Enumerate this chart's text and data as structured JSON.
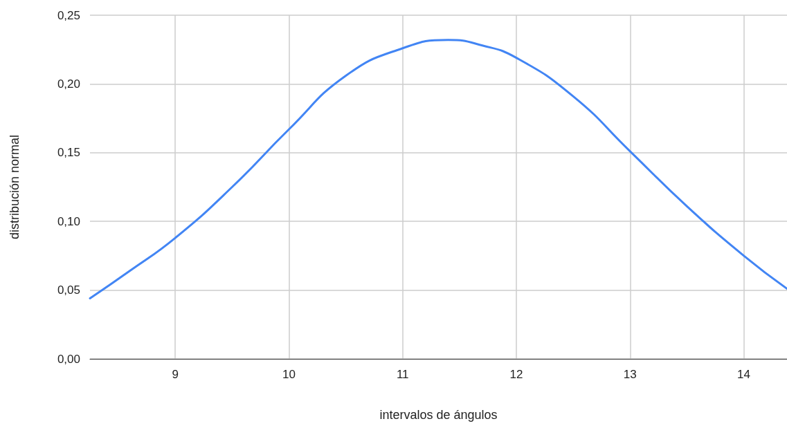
{
  "chart_data": {
    "type": "line",
    "xlabel": "intervalos de ángulos",
    "ylabel": "distribución normal",
    "x": [
      8.25,
      8.6,
      9,
      9.5,
      10,
      10.5,
      11,
      11.4,
      11.7,
      12,
      12.5,
      13,
      13.5,
      14,
      14.38
    ],
    "series": [
      {
        "color": "#4285f4",
        "values": [
          0.044,
          0.064,
          0.088,
          0.125,
          0.167,
          0.206,
          0.226,
          0.232,
          0.228,
          0.219,
          0.191,
          0.151,
          0.111,
          0.075,
          0.051
        ]
      }
    ],
    "xlim": [
      8.25,
      14.38
    ],
    "xticks": [
      9,
      10,
      11,
      12,
      13,
      14
    ],
    "ylim": [
      0,
      0.25
    ],
    "yticks": [
      {
        "value": 0,
        "label": "0,00"
      },
      {
        "value": 0.05,
        "label": "0,05"
      },
      {
        "value": 0.1,
        "label": "0,10"
      },
      {
        "value": 0.15,
        "label": "0,15"
      },
      {
        "value": 0.2,
        "label": "0,20"
      },
      {
        "value": 0.25,
        "label": "0,25"
      }
    ],
    "grid": true,
    "marker": "none",
    "line_style": "solid"
  }
}
